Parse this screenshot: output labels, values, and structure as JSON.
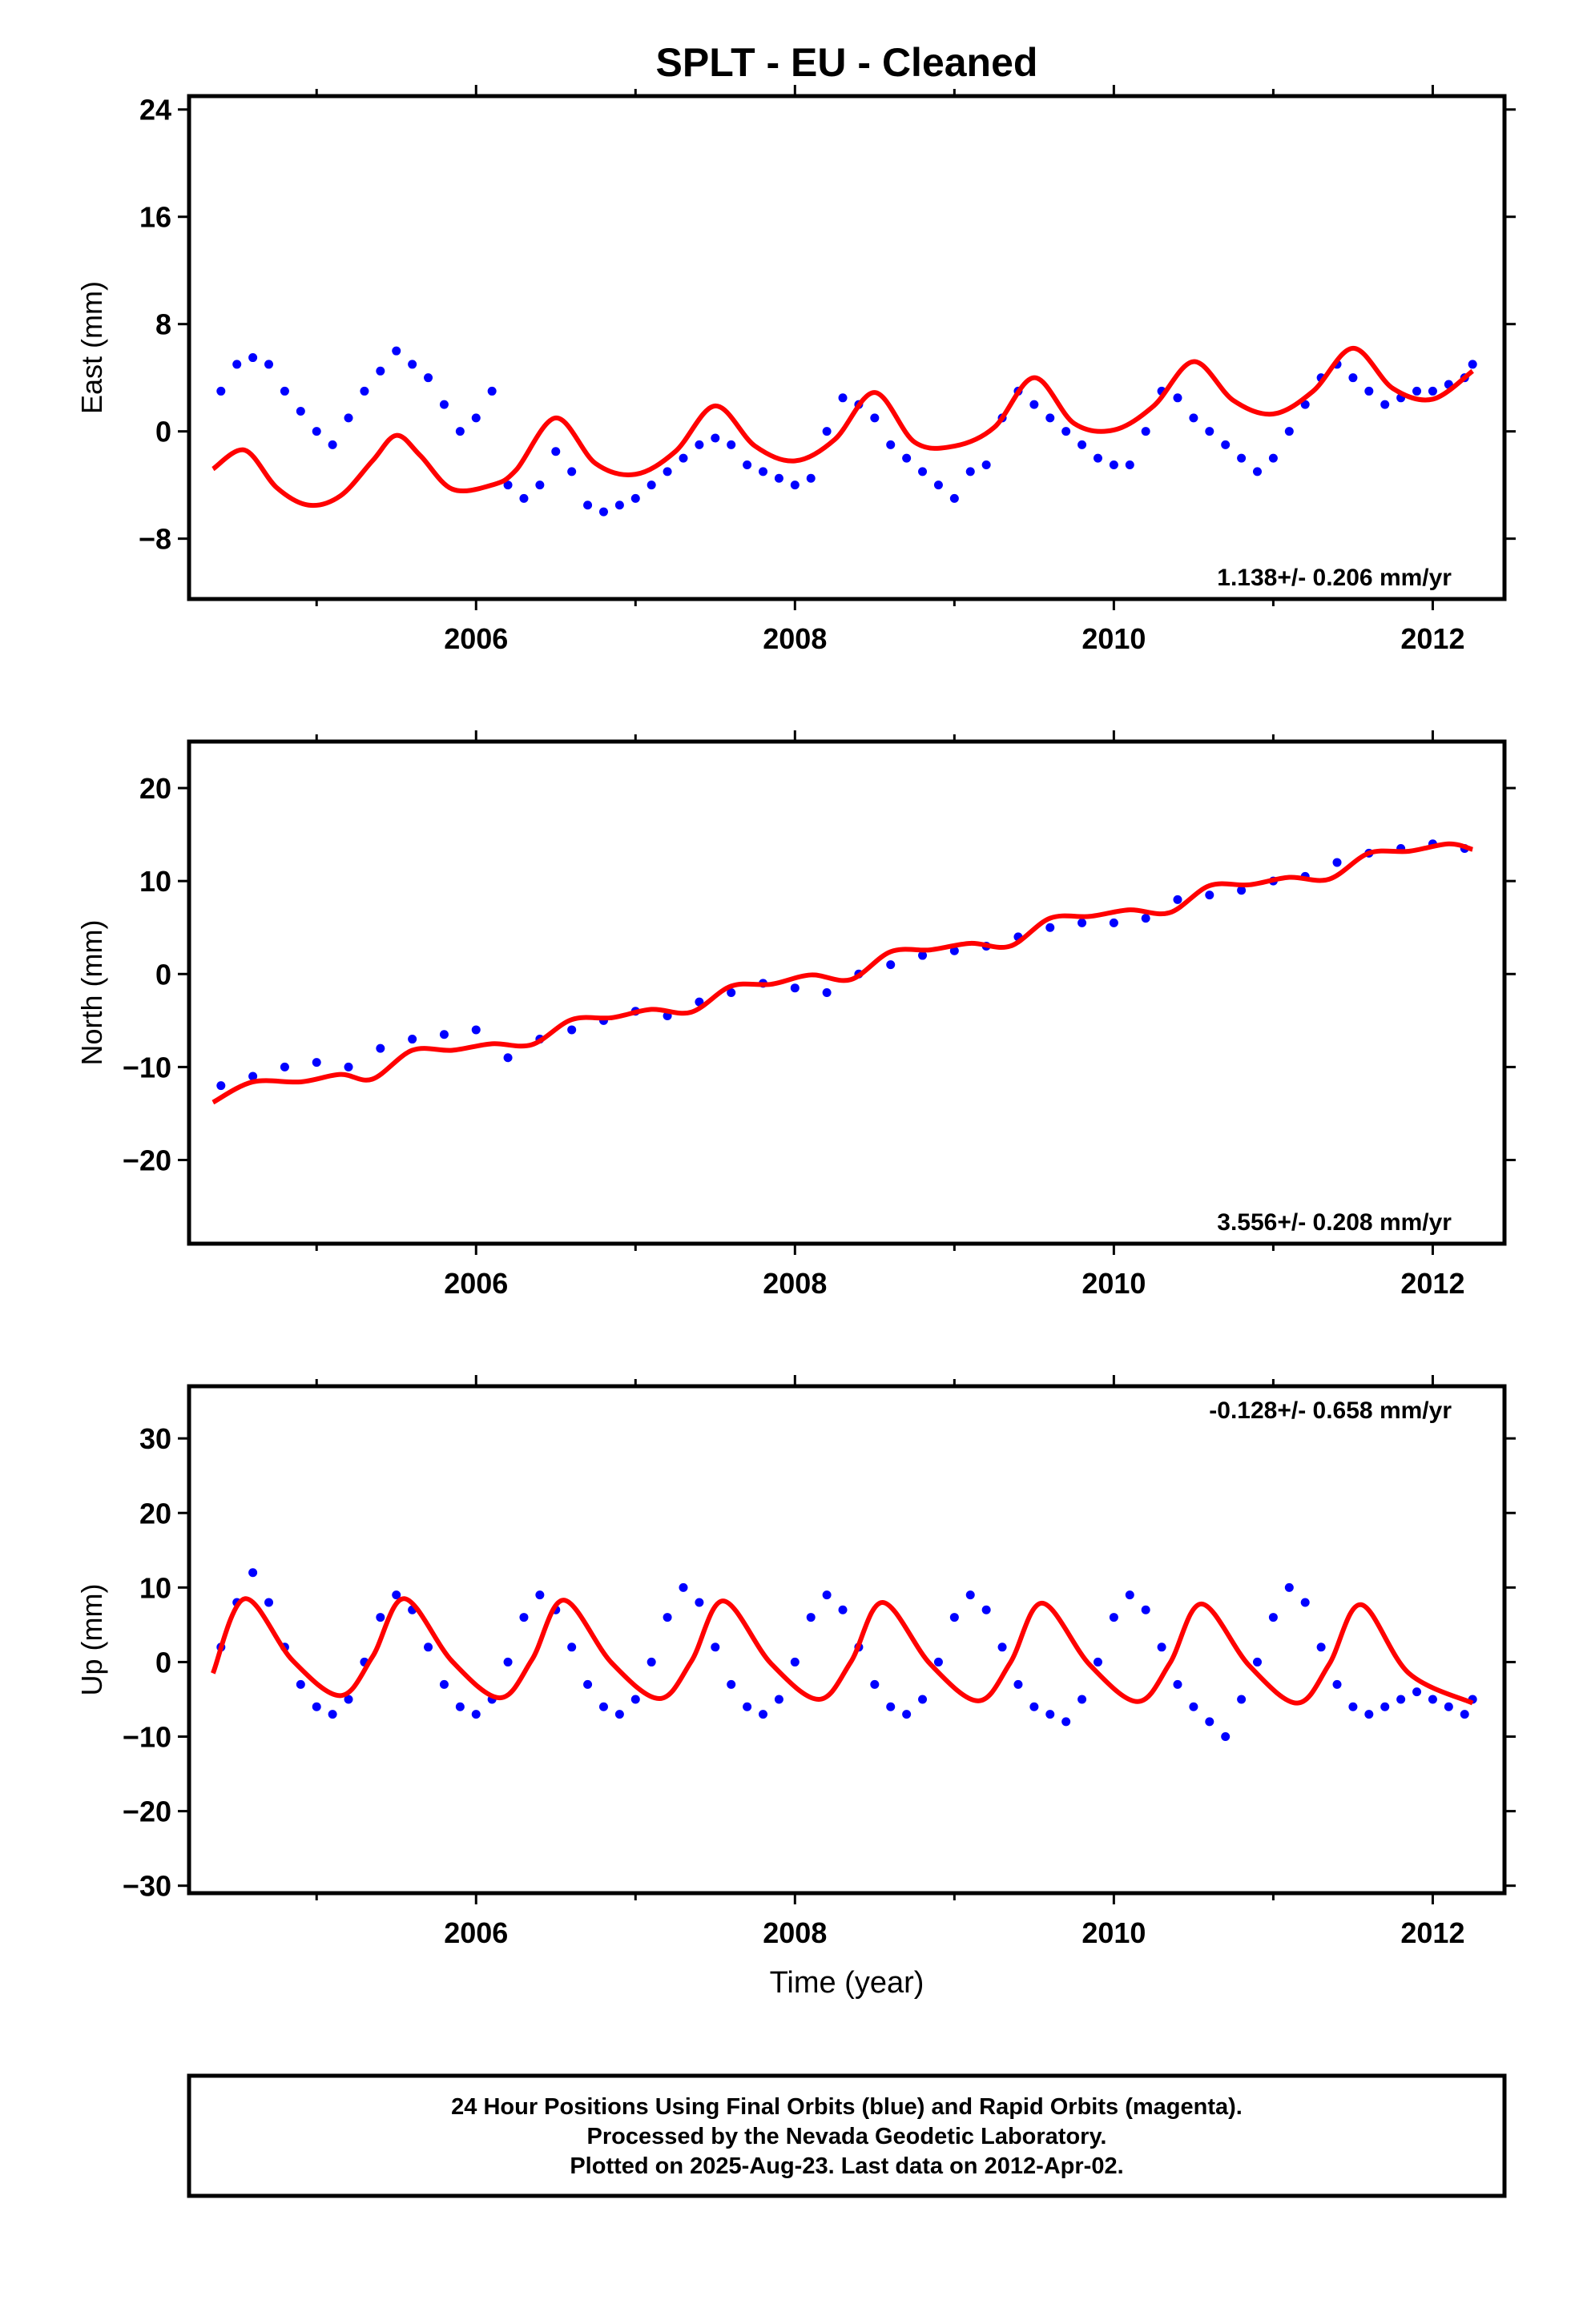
{
  "chart_data": [
    {
      "type": "scatter",
      "title": "SPLT  - EU - Cleaned",
      "ylabel": "East (mm)",
      "xlabel": "",
      "xlim": [
        2004.2,
        2012.45
      ],
      "ylim": [
        -12.5,
        25
      ],
      "yticks": [
        24,
        16,
        8,
        0,
        -8
      ],
      "xticks": [
        2006,
        2008,
        2010,
        2012
      ],
      "grid": false,
      "rate_label": "1.138+/- 0.206 mm/yr",
      "rate_position": "bottom-right",
      "series": [
        {
          "color": "#0000ff",
          "x": [
            2004.4,
            2004.5,
            2004.6,
            2004.7,
            2004.8,
            2004.9,
            2005.0,
            2005.1,
            2005.2,
            2005.3,
            2005.4,
            2005.5,
            2005.6,
            2005.7,
            2005.8,
            2005.9,
            2006.0,
            2006.1,
            2006.2,
            2006.3,
            2006.4,
            2006.5,
            2006.6,
            2006.7,
            2006.8,
            2006.9,
            2007.0,
            2007.1,
            2007.2,
            2007.3,
            2007.4,
            2007.5,
            2007.6,
            2007.7,
            2007.8,
            2007.9,
            2008.0,
            2008.1,
            2008.2,
            2008.3,
            2008.4,
            2008.5,
            2008.6,
            2008.7,
            2008.8,
            2008.9,
            2009.0,
            2009.1,
            2009.2,
            2009.3,
            2009.4,
            2009.5,
            2009.6,
            2009.7,
            2009.8,
            2009.9,
            2010.0,
            2010.1,
            2010.2,
            2010.3,
            2010.4,
            2010.5,
            2010.6,
            2010.7,
            2010.8,
            2010.9,
            2011.0,
            2011.1,
            2011.2,
            2011.3,
            2011.4,
            2011.5,
            2011.6,
            2011.7,
            2011.8,
            2011.9,
            2012.0,
            2012.1,
            2012.2,
            2012.25
          ],
          "y": [
            3,
            5,
            5.5,
            5,
            3,
            1.5,
            0,
            -1,
            1,
            3,
            4.5,
            6,
            5,
            4,
            2,
            0,
            1,
            3,
            -4,
            -5,
            -4,
            -1.5,
            -3,
            -5.5,
            -6,
            -5.5,
            -5,
            -4,
            -3,
            -2,
            -1,
            -0.5,
            -1,
            -2.5,
            -3,
            -3.5,
            -4,
            -3.5,
            0,
            2.5,
            2,
            1,
            -1,
            -2,
            -3,
            -4,
            -5,
            -3,
            -2.5,
            1,
            3,
            2,
            1,
            0,
            -1,
            -2,
            -2.5,
            -2.5,
            0,
            3,
            2.5,
            1,
            0,
            -1,
            -2,
            -3,
            -2,
            0,
            2,
            4,
            5,
            4,
            3,
            2,
            2.5,
            3,
            3,
            3.5,
            4,
            5
          ]
        },
        {
          "color": "#ff0000",
          "x": [
            2004.35,
            2004.55,
            2004.75,
            2004.95,
            2005.15,
            2005.35,
            2005.5,
            2005.65,
            2005.85,
            2006.1,
            2006.25,
            2006.5,
            2006.75,
            2007.0,
            2007.25,
            2007.5,
            2007.75,
            2008.0,
            2008.25,
            2008.5,
            2008.75,
            2009.0,
            2009.25,
            2009.5,
            2009.75,
            2010.0,
            2010.25,
            2010.5,
            2010.75,
            2011.0,
            2011.25,
            2011.5,
            2011.75,
            2012.0,
            2012.25
          ],
          "y": [
            -2.8,
            -1.4,
            -4.2,
            -5.5,
            -4.8,
            -2.2,
            -0.3,
            -1.8,
            -4.3,
            -4.0,
            -2.9,
            1.0,
            -2.4,
            -3.2,
            -1.5,
            1.9,
            -1.1,
            -2.2,
            -0.6,
            2.9,
            -0.8,
            -1.1,
            0.3,
            4.0,
            0.6,
            0.1,
            1.9,
            5.2,
            2.3,
            1.3,
            3.0,
            6.2,
            3.2,
            2.4,
            4.5
          ]
        }
      ]
    },
    {
      "type": "scatter",
      "title": "",
      "ylabel": "North (mm)",
      "xlabel": "",
      "xlim": [
        2004.2,
        2012.45
      ],
      "ylim": [
        -29,
        25
      ],
      "yticks": [
        20,
        10,
        0,
        -10,
        -20
      ],
      "xticks": [
        2006,
        2008,
        2010,
        2012
      ],
      "grid": false,
      "rate_label": "3.556+/- 0.208 mm/yr",
      "rate_position": "bottom-right",
      "series": [
        {
          "color": "#0000ff",
          "x": [
            2004.4,
            2004.6,
            2004.8,
            2005.0,
            2005.2,
            2005.4,
            2005.6,
            2005.8,
            2006.0,
            2006.2,
            2006.4,
            2006.6,
            2006.8,
            2007.0,
            2007.2,
            2007.4,
            2007.6,
            2007.8,
            2008.0,
            2008.2,
            2008.4,
            2008.6,
            2008.8,
            2009.0,
            2009.2,
            2009.4,
            2009.6,
            2009.8,
            2010.0,
            2010.2,
            2010.4,
            2010.6,
            2010.8,
            2011.0,
            2011.2,
            2011.4,
            2011.6,
            2011.8,
            2012.0,
            2012.2
          ],
          "y": [
            -12,
            -11,
            -10,
            -9.5,
            -10,
            -8,
            -7,
            -6.5,
            -6,
            -9,
            -7,
            -6,
            -5,
            -4,
            -4.5,
            -3,
            -2,
            -1,
            -1.5,
            -2,
            0,
            1,
            2,
            2.5,
            3,
            4,
            5,
            5.5,
            5.5,
            6,
            8,
            8.5,
            9,
            10,
            10.5,
            12,
            13,
            13.5,
            14,
            13.5
          ]
        },
        {
          "color": "#ff0000",
          "x": [
            2004.35,
            2004.6,
            2004.9,
            2005.15,
            2005.35,
            2005.6,
            2005.85,
            2006.1,
            2006.35,
            2006.6,
            2006.85,
            2007.1,
            2007.35,
            2007.6,
            2007.85,
            2008.1,
            2008.35,
            2008.6,
            2008.85,
            2009.1,
            2009.35,
            2009.6,
            2009.85,
            2010.1,
            2010.35,
            2010.6,
            2010.85,
            2011.1,
            2011.35,
            2011.6,
            2011.85,
            2012.1,
            2012.25
          ],
          "y": [
            -13.8,
            -11.6,
            -11.6,
            -10.8,
            -11.3,
            -8.2,
            -8.2,
            -7.5,
            -7.6,
            -4.9,
            -4.7,
            -3.8,
            -4.1,
            -1.3,
            -1.1,
            -0.1,
            -0.6,
            2.4,
            2.6,
            3.3,
            3.0,
            6.0,
            6.2,
            6.9,
            6.6,
            9.5,
            9.6,
            10.4,
            10.2,
            13.0,
            13.2,
            14.0,
            13.4
          ]
        }
      ]
    },
    {
      "type": "scatter",
      "title": "",
      "ylabel": "Up (mm)",
      "xlabel": "Time (year)",
      "xlim": [
        2004.2,
        2012.45
      ],
      "ylim": [
        -31,
        37
      ],
      "yticks": [
        30,
        20,
        10,
        0,
        -10,
        -20,
        -30
      ],
      "xticks": [
        2006,
        2008,
        2010,
        2012
      ],
      "grid": false,
      "rate_label": "-0.128+/- 0.658 mm/yr",
      "rate_position": "top-right",
      "series": [
        {
          "color": "#0000ff",
          "x": [
            2004.4,
            2004.5,
            2004.6,
            2004.7,
            2004.8,
            2004.9,
            2005.0,
            2005.1,
            2005.2,
            2005.3,
            2005.4,
            2005.5,
            2005.6,
            2005.7,
            2005.8,
            2005.9,
            2006.0,
            2006.1,
            2006.2,
            2006.3,
            2006.4,
            2006.5,
            2006.6,
            2006.7,
            2006.8,
            2006.9,
            2007.0,
            2007.1,
            2007.2,
            2007.3,
            2007.4,
            2007.5,
            2007.6,
            2007.7,
            2007.8,
            2007.9,
            2008.0,
            2008.1,
            2008.2,
            2008.3,
            2008.4,
            2008.5,
            2008.6,
            2008.7,
            2008.8,
            2008.9,
            2009.0,
            2009.1,
            2009.2,
            2009.3,
            2009.4,
            2009.5,
            2009.6,
            2009.7,
            2009.8,
            2009.9,
            2010.0,
            2010.1,
            2010.2,
            2010.3,
            2010.4,
            2010.5,
            2010.6,
            2010.7,
            2010.8,
            2010.9,
            2011.0,
            2011.1,
            2011.2,
            2011.3,
            2011.4,
            2011.5,
            2011.6,
            2011.7,
            2011.8,
            2011.9,
            2012.0,
            2012.1,
            2012.2,
            2012.25
          ],
          "y": [
            2,
            8,
            12,
            8,
            2,
            -3,
            -6,
            -7,
            -5,
            0,
            6,
            9,
            7,
            2,
            -3,
            -6,
            -7,
            -5,
            0,
            6,
            9,
            7,
            2,
            -3,
            -6,
            -7,
            -5,
            0,
            6,
            10,
            8,
            2,
            -3,
            -6,
            -7,
            -5,
            0,
            6,
            9,
            7,
            2,
            -3,
            -6,
            -7,
            -5,
            0,
            6,
            9,
            7,
            2,
            -3,
            -6,
            -7,
            -8,
            -5,
            0,
            6,
            9,
            7,
            2,
            -3,
            -6,
            -8,
            -10,
            -5,
            0,
            6,
            10,
            8,
            2,
            -3,
            -6,
            -7,
            -6,
            -5,
            -4,
            -5,
            -6,
            -7,
            -5
          ]
        },
        {
          "color": "#ff0000",
          "x": [
            2004.35,
            2004.55,
            2004.85,
            2005.15,
            2005.35,
            2005.55,
            2005.85,
            2006.15,
            2006.35,
            2006.55,
            2006.85,
            2007.15,
            2007.35,
            2007.55,
            2007.85,
            2008.15,
            2008.35,
            2008.55,
            2008.85,
            2009.15,
            2009.35,
            2009.55,
            2009.85,
            2010.15,
            2010.35,
            2010.55,
            2010.85,
            2011.15,
            2011.35,
            2011.55,
            2011.85,
            2012.25
          ],
          "y": [
            -1.5,
            8.5,
            0.2,
            -4.5,
            0.7,
            8.5,
            0.1,
            -4.8,
            0.3,
            8.3,
            -0.1,
            -4.9,
            0.1,
            8.2,
            -0.2,
            -5.0,
            0.0,
            8.0,
            -0.3,
            -5.2,
            -0.1,
            7.9,
            -0.4,
            -5.3,
            -0.2,
            7.8,
            -0.5,
            -5.5,
            -0.3,
            7.7,
            -1.5,
            -5.5
          ]
        }
      ]
    }
  ],
  "footer": {
    "line1": "24 Hour Positions Using Final Orbits (blue) and Rapid Orbits (magenta).",
    "line2": "Processed by the Nevada Geodetic Laboratory.",
    "line3": "Plotted on 2025-Aug-23. Last data on 2012-Apr-02."
  }
}
